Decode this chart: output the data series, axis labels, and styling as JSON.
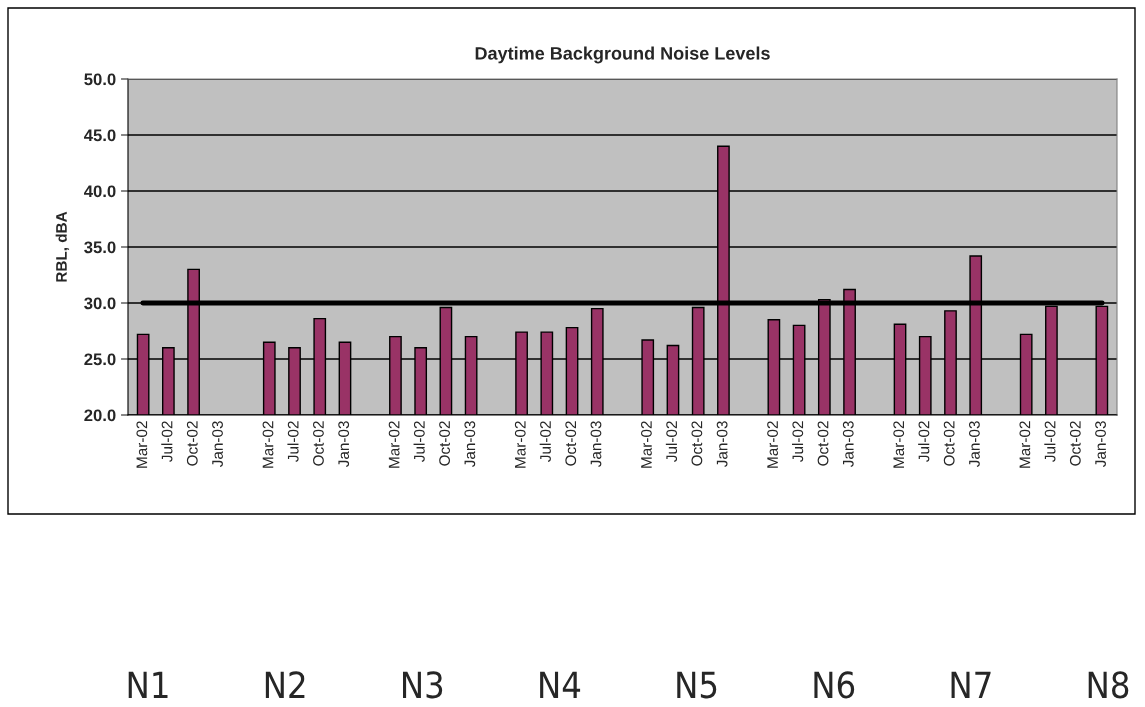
{
  "chart_data": {
    "type": "bar",
    "title": "Daytime Background Noise Levels",
    "ylabel": "RBL, dBA",
    "categories": [
      "Mar-02",
      "Jul-02",
      "Oct-02",
      "Jan-03",
      null,
      "Mar-02",
      "Jul-02",
      "Oct-02",
      "Jan-03",
      null,
      "Mar-02",
      "Jul-02",
      "Oct-02",
      "Jan-03",
      null,
      "Mar-02",
      "Jul-02",
      "Oct-02",
      "Jan-03",
      null,
      "Mar-02",
      "Jul-02",
      "Oct-02",
      "Jan-03",
      null,
      "Mar-02",
      "Jul-02",
      "Oct-02",
      "Jan-03",
      null,
      "Mar-02",
      "Jul-02",
      "Oct-02",
      "Jan-03",
      null,
      "Mar-02",
      "Jul-02",
      "Oct-02",
      "Jan-03"
    ],
    "values": [
      27.2,
      26.0,
      33.0,
      null,
      null,
      26.5,
      26.0,
      28.6,
      26.5,
      null,
      27.0,
      26.0,
      29.6,
      27.0,
      null,
      27.4,
      27.4,
      27.8,
      29.5,
      null,
      26.7,
      26.2,
      29.6,
      44.0,
      null,
      28.5,
      28.0,
      30.3,
      31.2,
      null,
      28.1,
      27.0,
      29.3,
      34.2,
      null,
      27.2,
      29.7,
      null,
      29.7
    ],
    "color": "#993366",
    "ylim": [
      20,
      50
    ],
    "yticks": [
      {
        "value": 20,
        "label": "20.0"
      },
      {
        "value": 25,
        "label": "25.0"
      },
      {
        "value": 30,
        "label": "30.0"
      },
      {
        "value": 35,
        "label": "35.0"
      },
      {
        "value": 40,
        "label": "40.0"
      },
      {
        "value": 45,
        "label": "45.0"
      },
      {
        "value": 50,
        "label": "50.0"
      }
    ],
    "grid": "y",
    "ref_lines": [
      {
        "axis": "y",
        "value": 30,
        "color": "#000000"
      }
    ],
    "annotations": [
      "N1",
      "N2",
      "N3",
      "N4",
      "N5",
      "N6",
      "N7",
      "N8"
    ]
  }
}
